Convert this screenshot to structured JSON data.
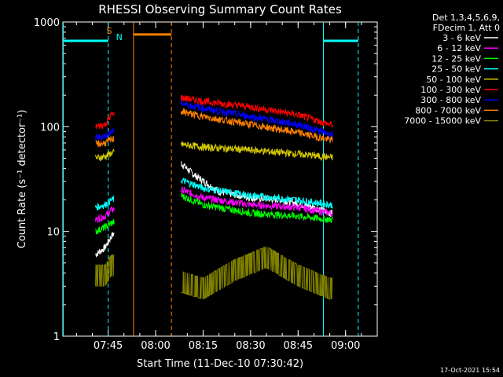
{
  "chart_data": {
    "type": "line",
    "title": "RHESSI Observing Summary Count Rates",
    "xlabel": "Start Time (11-Dec-10 07:30:42)",
    "ylabel": "Count Rate (s⁻¹ detector⁻¹)",
    "y_scale": "log",
    "ylim": [
      1,
      1000
    ],
    "xlim": [
      "07:30:42",
      "09:10:00"
    ],
    "x_ticks": [
      "07:45",
      "08:00",
      "08:15",
      "08:30",
      "08:45",
      "09:00"
    ],
    "y_ticks": [
      "1",
      "10",
      "100",
      "1000"
    ],
    "legend_header": [
      "Det 1,3,4,5,6,9,",
      "FDecim 1, Att 0"
    ],
    "legend_position": "top-right outside",
    "series": [
      {
        "name": "3 - 6 keV",
        "color": "#ffffff",
        "x": [
          "07:41",
          "07:44",
          "07:46",
          "08:08",
          "08:12",
          "08:20",
          "08:30",
          "08:40",
          "08:50",
          "08:55"
        ],
        "values": [
          6,
          7,
          9,
          45,
          35,
          24,
          21,
          20,
          17,
          15
        ]
      },
      {
        "name": "6 - 12 keV",
        "color": "#ff00ff",
        "x": [
          "07:41",
          "07:44",
          "07:46",
          "08:08",
          "08:15",
          "08:30",
          "08:45",
          "08:55"
        ],
        "values": [
          13,
          14,
          16,
          25,
          21,
          18,
          17,
          15
        ]
      },
      {
        "name": "12 - 25 keV",
        "color": "#00ff00",
        "x": [
          "07:41",
          "07:44",
          "07:46",
          "08:08",
          "08:15",
          "08:30",
          "08:45",
          "08:55"
        ],
        "values": [
          10,
          11,
          12,
          22,
          18,
          15,
          14,
          13
        ]
      },
      {
        "name": "25 - 50 keV",
        "color": "#00ffff",
        "x": [
          "07:41",
          "07:44",
          "07:46",
          "08:08",
          "08:15",
          "08:30",
          "08:45",
          "08:55"
        ],
        "values": [
          17,
          18,
          20,
          31,
          26,
          22,
          20,
          18
        ]
      },
      {
        "name": "50 - 100 keV",
        "color": "#d4c800",
        "x": [
          "07:41",
          "07:44",
          "07:46",
          "08:08",
          "08:15",
          "08:30",
          "08:45",
          "08:55"
        ],
        "values": [
          50,
          52,
          56,
          68,
          64,
          60,
          55,
          51
        ]
      },
      {
        "name": "100 - 300 keV",
        "color": "#ff0000",
        "x": [
          "07:41",
          "07:44",
          "07:46",
          "08:08",
          "08:15",
          "08:30",
          "08:45",
          "08:55"
        ],
        "values": [
          100,
          105,
          130,
          190,
          175,
          155,
          130,
          105
        ]
      },
      {
        "name": "300 - 800 keV",
        "color": "#0000ff",
        "x": [
          "07:41",
          "07:44",
          "07:46",
          "08:08",
          "08:15",
          "08:30",
          "08:45",
          "08:55"
        ],
        "values": [
          78,
          82,
          90,
          168,
          150,
          125,
          105,
          85
        ]
      },
      {
        "name": "800 - 7000 keV",
        "color": "#ff8000",
        "x": [
          "07:41",
          "07:44",
          "07:46",
          "08:08",
          "08:15",
          "08:30",
          "08:45",
          "08:55"
        ],
        "values": [
          68,
          70,
          75,
          140,
          125,
          105,
          88,
          75
        ]
      },
      {
        "name": "7000 - 15000 keV",
        "color": "#808000",
        "x": [
          "07:41",
          "07:44",
          "07:46",
          "08:08",
          "08:15",
          "08:25",
          "08:35",
          "08:45",
          "08:55"
        ],
        "values": [
          4,
          4,
          5,
          3.5,
          3,
          4.5,
          6,
          4,
          3
        ]
      }
    ],
    "flags": [
      {
        "label": "S",
        "color": "#ff8000"
      },
      {
        "label": "N",
        "color": "#00ffff"
      }
    ],
    "timestamp": "17-Oct-2021 15:54"
  }
}
